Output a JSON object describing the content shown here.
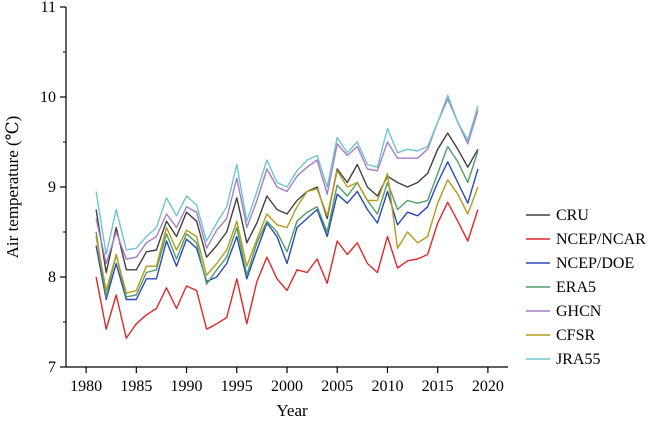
{
  "chart_data": {
    "type": "line",
    "title": "",
    "xlabel": "Year",
    "ylabel": "Air temperature (℃)",
    "xlim": [
      1978,
      2022
    ],
    "ylim": [
      7,
      11
    ],
    "xticks": [
      1980,
      1985,
      1990,
      1995,
      2000,
      2005,
      2010,
      2015,
      2020
    ],
    "yticks": [
      7,
      8,
      9,
      10,
      11
    ],
    "grid": false,
    "legend_position": "right",
    "x": [
      1981,
      1982,
      1983,
      1984,
      1985,
      1986,
      1987,
      1988,
      1989,
      1990,
      1991,
      1992,
      1993,
      1994,
      1995,
      1996,
      1997,
      1998,
      1999,
      2000,
      2001,
      2002,
      2003,
      2004,
      2005,
      2006,
      2007,
      2008,
      2009,
      2010,
      2011,
      2012,
      2013,
      2014,
      2015,
      2016,
      2017,
      2018,
      2019
    ],
    "series": [
      {
        "name": "CRU",
        "color": "#404040",
        "values": [
          8.75,
          8.05,
          8.55,
          8.08,
          8.08,
          8.28,
          8.3,
          8.62,
          8.45,
          8.72,
          8.62,
          8.22,
          8.35,
          8.5,
          8.88,
          8.38,
          8.6,
          8.9,
          8.75,
          8.7,
          8.85,
          8.95,
          9.0,
          8.65,
          9.2,
          9.05,
          9.25,
          9.0,
          8.9,
          9.12,
          9.05,
          9.0,
          9.05,
          9.15,
          9.42,
          9.6,
          9.42,
          9.22,
          9.42
        ]
      },
      {
        "name": "NCEP/NCAR",
        "color": "#e0282a",
        "values": [
          8.0,
          7.42,
          7.8,
          7.32,
          7.48,
          7.58,
          7.65,
          7.88,
          7.65,
          7.9,
          7.85,
          7.42,
          7.48,
          7.55,
          7.98,
          7.48,
          7.95,
          8.22,
          7.98,
          7.85,
          8.08,
          8.05,
          8.2,
          7.93,
          8.4,
          8.25,
          8.38,
          8.15,
          8.05,
          8.45,
          8.1,
          8.18,
          8.2,
          8.25,
          8.6,
          8.83,
          8.62,
          8.4,
          8.75
        ]
      },
      {
        "name": "NCEP/DOE",
        "color": "#2a48b8",
        "values": [
          8.35,
          7.75,
          8.15,
          7.75,
          7.75,
          7.98,
          7.98,
          8.4,
          8.12,
          8.42,
          8.32,
          7.95,
          8.0,
          8.15,
          8.45,
          7.98,
          8.3,
          8.6,
          8.45,
          8.15,
          8.55,
          8.65,
          8.75,
          8.45,
          8.92,
          8.82,
          8.95,
          8.75,
          8.6,
          8.95,
          8.58,
          8.72,
          8.68,
          8.78,
          9.05,
          9.28,
          9.05,
          8.82,
          9.2
        ]
      },
      {
        "name": "ERA5",
        "color": "#4f9e68",
        "values": [
          8.5,
          7.78,
          8.25,
          7.78,
          7.8,
          8.05,
          8.08,
          8.48,
          8.2,
          8.48,
          8.38,
          7.92,
          8.08,
          8.22,
          8.55,
          8.02,
          8.38,
          8.62,
          8.5,
          8.28,
          8.62,
          8.72,
          8.78,
          8.5,
          9.02,
          8.9,
          9.05,
          8.85,
          8.7,
          9.05,
          8.75,
          8.85,
          8.82,
          8.85,
          9.15,
          9.45,
          9.28,
          9.05,
          9.4
        ]
      },
      {
        "name": "GHCN",
        "color": "#a77cc7",
        "values": [
          8.65,
          8.15,
          8.5,
          8.2,
          8.22,
          8.38,
          8.45,
          8.7,
          8.55,
          8.78,
          8.72,
          8.32,
          8.52,
          8.65,
          9.1,
          8.55,
          8.85,
          9.2,
          9.0,
          8.95,
          9.12,
          9.22,
          9.3,
          8.92,
          9.48,
          9.35,
          9.45,
          9.2,
          9.18,
          9.5,
          9.32,
          9.32,
          9.32,
          9.42,
          9.72,
          9.98,
          9.72,
          9.48,
          9.85
        ]
      },
      {
        "name": "CFSR",
        "color": "#b39b1c",
        "values": [
          8.45,
          7.85,
          8.25,
          7.82,
          7.85,
          8.12,
          8.12,
          8.55,
          8.3,
          8.52,
          8.45,
          8.02,
          8.15,
          8.3,
          8.62,
          8.12,
          8.42,
          8.7,
          8.58,
          8.55,
          8.78,
          8.95,
          8.98,
          8.68,
          9.18,
          9.0,
          9.05,
          8.85,
          8.85,
          9.15,
          8.32,
          8.5,
          8.38,
          8.45,
          8.82,
          9.08,
          8.92,
          8.7,
          9.0
        ]
      },
      {
        "name": "JRA55",
        "color": "#6cc6cc",
        "values": [
          8.95,
          8.25,
          8.75,
          8.3,
          8.32,
          8.45,
          8.55,
          8.88,
          8.68,
          8.9,
          8.8,
          8.4,
          8.6,
          8.78,
          9.25,
          8.62,
          8.95,
          9.3,
          9.05,
          9.0,
          9.18,
          9.3,
          9.35,
          9.0,
          9.55,
          9.38,
          9.5,
          9.25,
          9.22,
          9.65,
          9.38,
          9.42,
          9.4,
          9.45,
          9.72,
          10.02,
          9.72,
          9.52,
          9.9
        ]
      }
    ]
  }
}
